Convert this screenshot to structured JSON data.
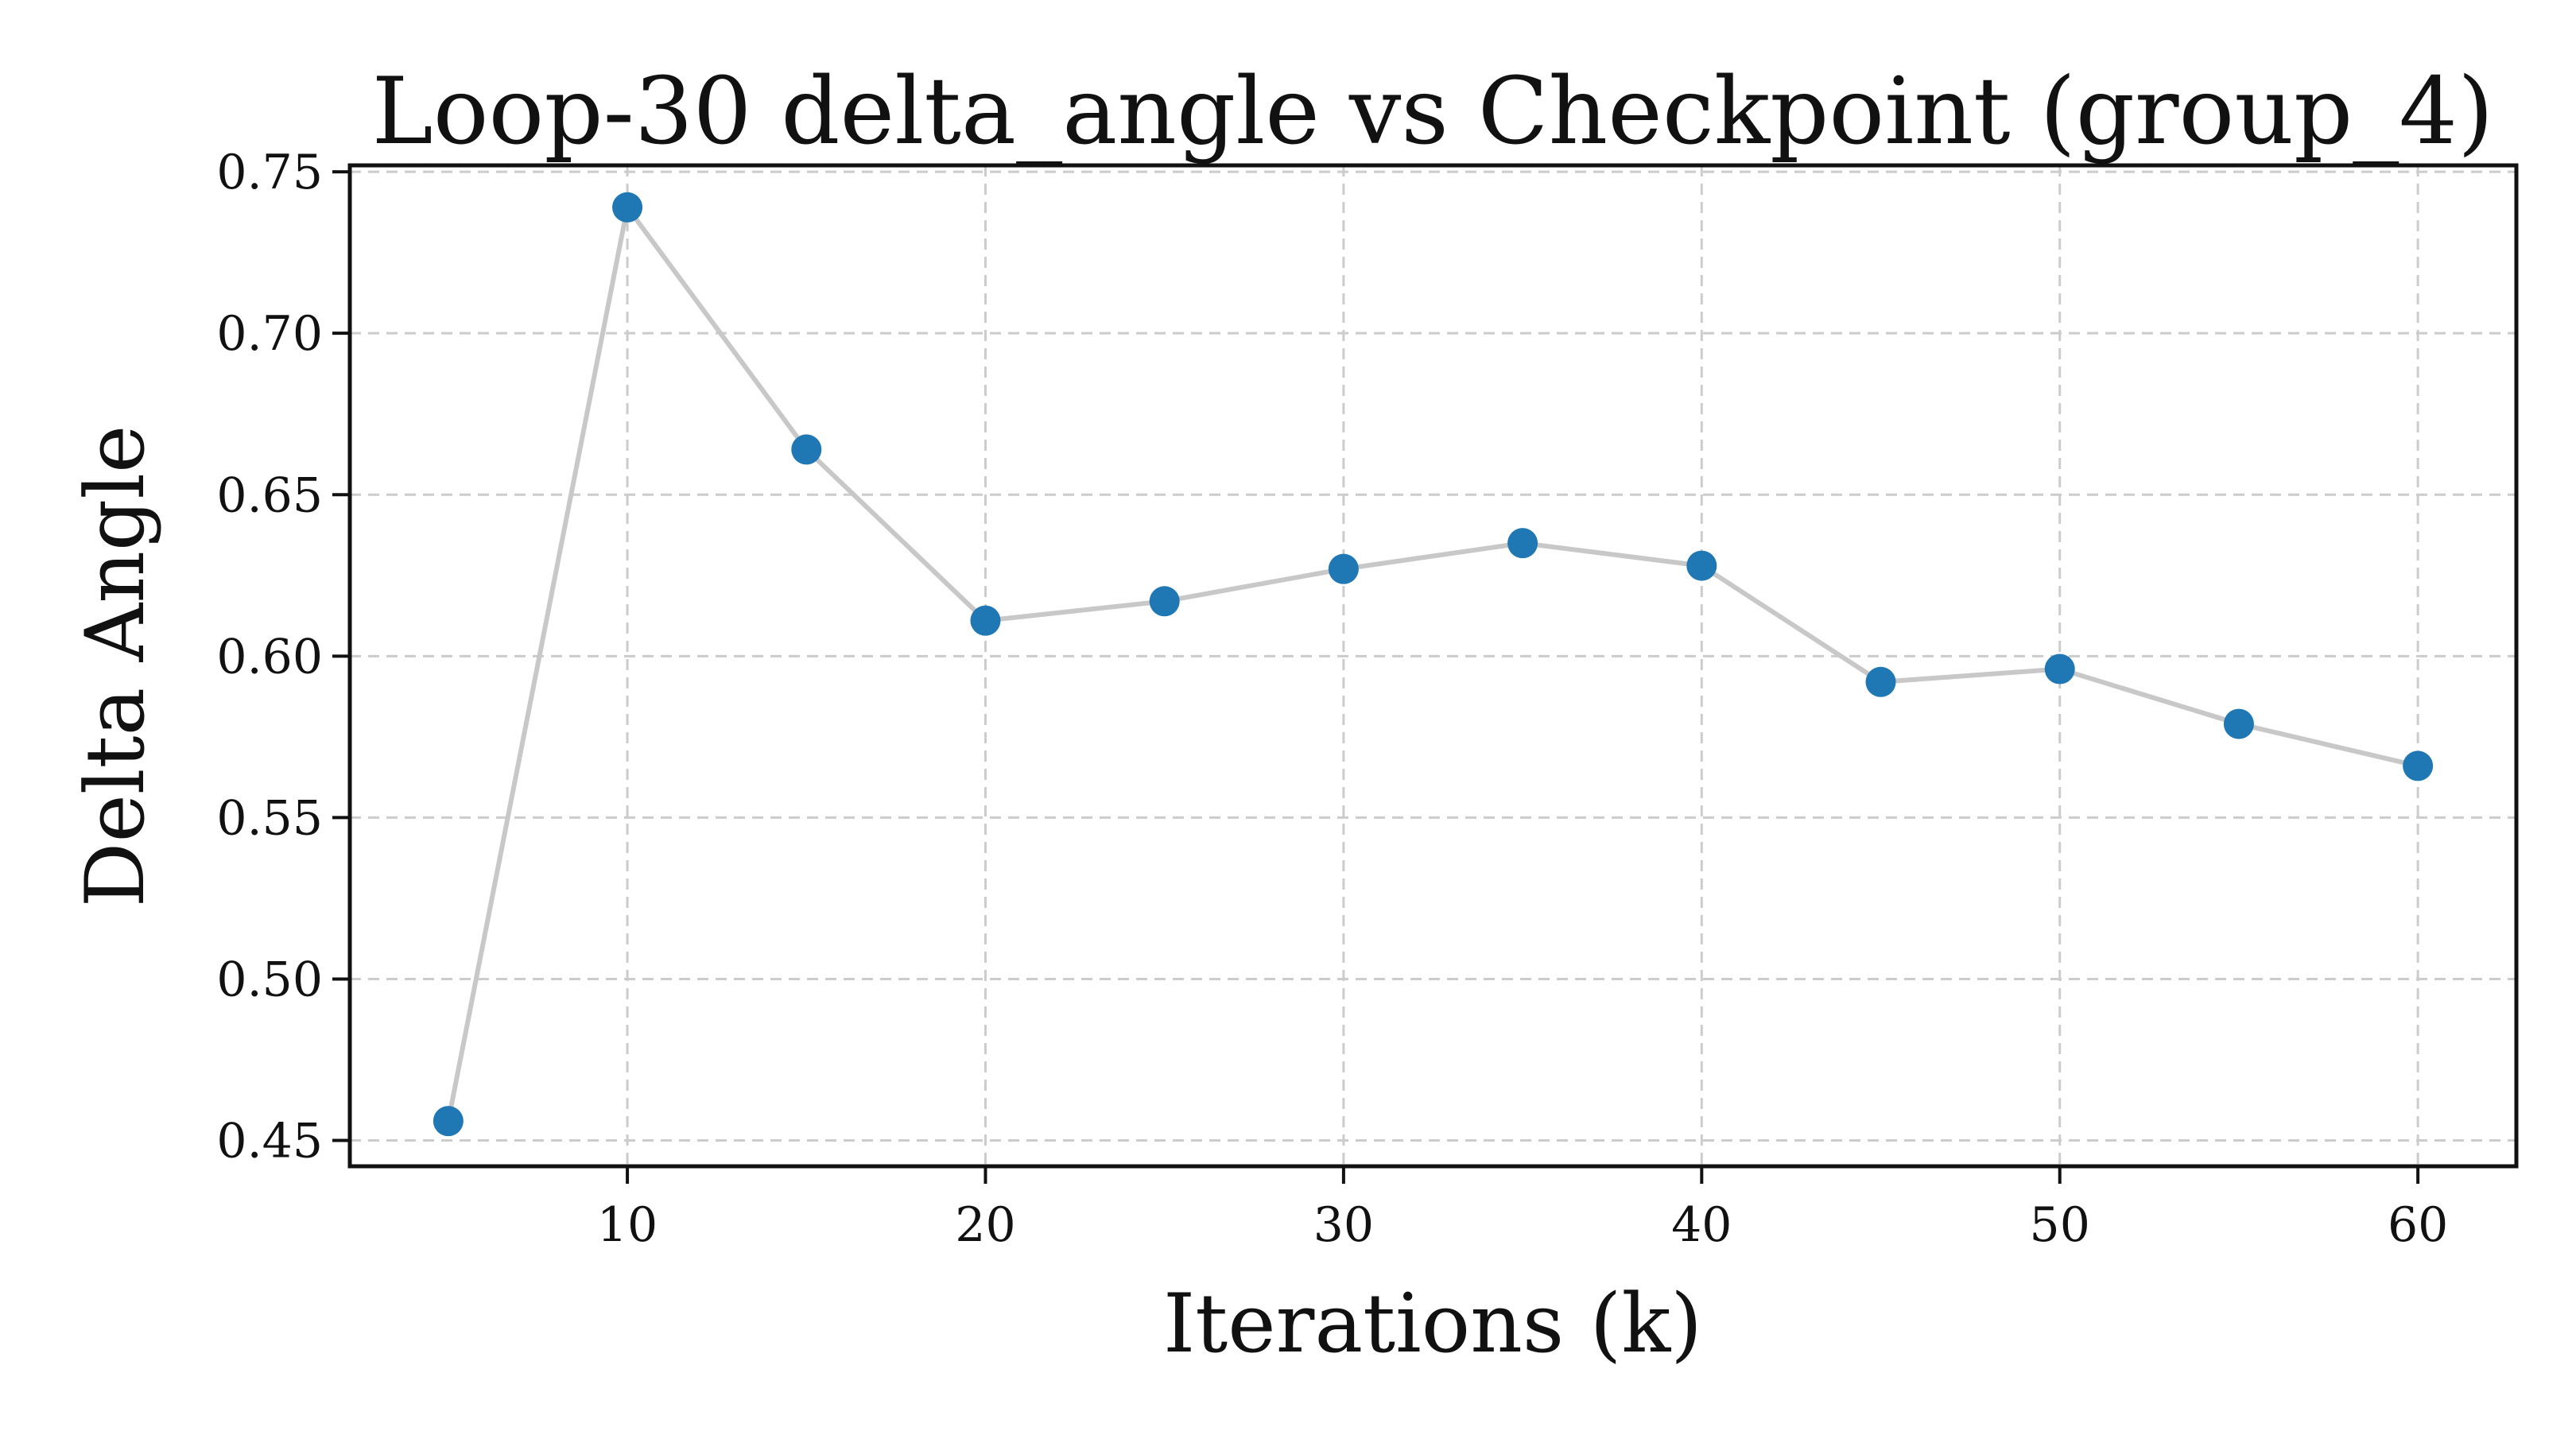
{
  "chart_data": {
    "type": "line",
    "title": "Loop-30 delta_angle vs Checkpoint (group_4)",
    "xlabel": "Iterations (k)",
    "ylabel": "Delta Angle",
    "x": [
      5,
      10,
      15,
      20,
      25,
      30,
      35,
      40,
      45,
      50,
      55,
      60
    ],
    "series": [
      {
        "values": [
          0.456,
          0.739,
          0.664,
          0.611,
          0.617,
          0.627,
          0.635,
          0.628,
          0.592,
          0.596,
          0.579,
          0.566
        ],
        "marker_color": "#1f77b4",
        "line_color": "#c8c8c8"
      }
    ],
    "xlim": [
      2.25,
      62.75
    ],
    "ylim": [
      0.442,
      0.752
    ],
    "x_ticks": [
      "10",
      "20",
      "30",
      "40",
      "50",
      "60"
    ],
    "y_ticks": [
      "0.45",
      "0.50",
      "0.55",
      "0.60",
      "0.65",
      "0.70",
      "0.75"
    ],
    "grid": true,
    "grid_style": "dashed",
    "legend": "none"
  }
}
